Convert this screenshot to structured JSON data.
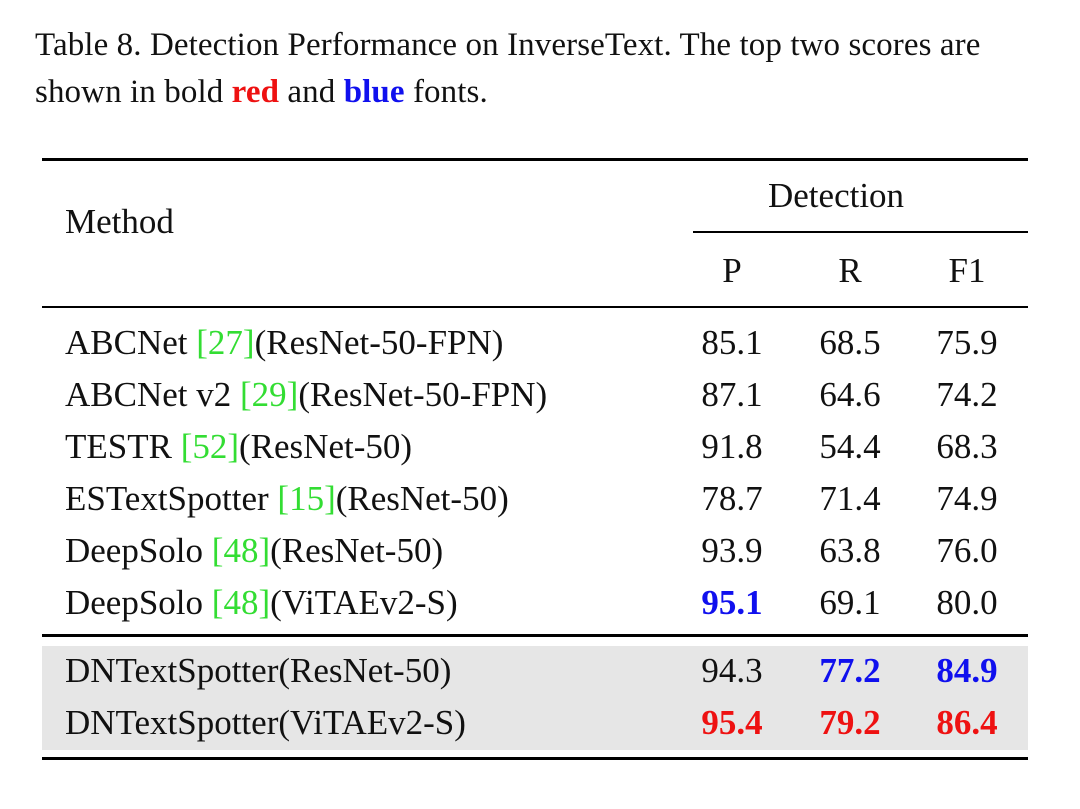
{
  "caption": {
    "prefix": "Table 8.  Detection Performance on InverseText.  The top two scores are shown in bold ",
    "red_word": "red",
    "middle": " and ",
    "blue_word": "blue",
    "suffix": " fonts."
  },
  "header": {
    "method": "Method",
    "group": "Detection",
    "columns": [
      "P",
      "R",
      "F1"
    ]
  },
  "rows": [
    {
      "name": "ABCNet ",
      "ref": "27",
      "backbone": "(ResNet-50-FPN)",
      "values": [
        "85.1",
        "68.5",
        "75.9"
      ],
      "rank": [
        "",
        "",
        ""
      ]
    },
    {
      "name": "ABCNet v2 ",
      "ref": "29",
      "backbone": "(ResNet-50-FPN)",
      "values": [
        "87.1",
        "64.6",
        "74.2"
      ],
      "rank": [
        "",
        "",
        ""
      ]
    },
    {
      "name": "TESTR ",
      "ref": "52",
      "backbone": "(ResNet-50)",
      "values": [
        "91.8",
        "54.4",
        "68.3"
      ],
      "rank": [
        "",
        "",
        ""
      ]
    },
    {
      "name": "ESTextSpotter ",
      "ref": "15",
      "backbone": "(ResNet-50)",
      "values": [
        "78.7",
        "71.4",
        "74.9"
      ],
      "rank": [
        "",
        "",
        ""
      ]
    },
    {
      "name": "DeepSolo ",
      "ref": "48",
      "backbone": "(ResNet-50)",
      "values": [
        "93.9",
        "63.8",
        "76.0"
      ],
      "rank": [
        "",
        "",
        ""
      ]
    },
    {
      "name": "DeepSolo ",
      "ref": "48",
      "backbone": "(ViTAEv2-S)",
      "values": [
        "95.1",
        "69.1",
        "80.0"
      ],
      "rank": [
        "second",
        "",
        ""
      ]
    },
    {
      "name": "DNTextSpotter",
      "ref": "",
      "backbone": "(ResNet-50)",
      "values": [
        "94.3",
        "77.2",
        "84.9"
      ],
      "rank": [
        "",
        "second",
        "second"
      ]
    },
    {
      "name": "DNTextSpotter",
      "ref": "",
      "backbone": "(ViTAEv2-S)",
      "values": [
        "95.4",
        "79.2",
        "86.4"
      ],
      "rank": [
        "first",
        "first",
        "first"
      ]
    }
  ],
  "colors": {
    "first": "#ee1111",
    "second": "#1010ee",
    "citation": "#33dd33",
    "shade": "#e6e6e6"
  }
}
